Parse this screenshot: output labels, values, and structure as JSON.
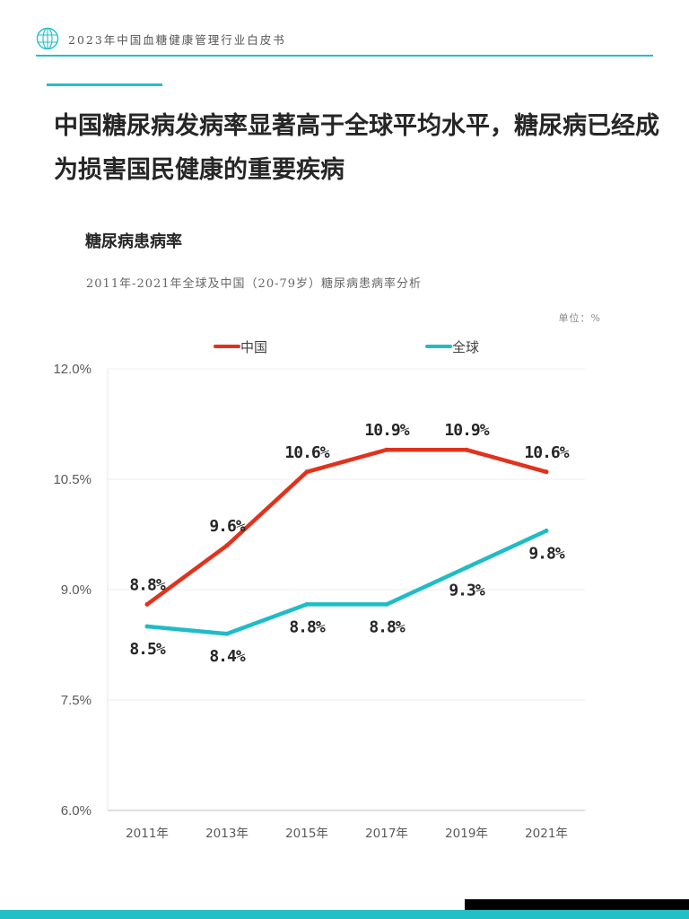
{
  "header": {
    "report_title": "2023年中国血糖健康管理行业白皮书",
    "logo_icon": "globe-logo-icon"
  },
  "headline": "中国糖尿病发病率显著高于全球平均水平，糖尿病已经成为损害国民健康的重要疾病",
  "chart_section": {
    "heading": "糖尿病患病率",
    "subtitle": "2011年-2021年全球及中国（20-79岁）糖尿病患病率分析",
    "unit": "单位：%"
  },
  "colors": {
    "accent": "#23bfc6",
    "china_series": "#e2321c",
    "global_series": "#1fbcc6"
  },
  "chart_data": {
    "type": "line",
    "categories": [
      "2011年",
      "2013年",
      "2015年",
      "2017年",
      "2019年",
      "2021年"
    ],
    "series": [
      {
        "name": "中国",
        "values": [
          8.8,
          9.6,
          10.6,
          10.9,
          10.9,
          10.6
        ],
        "labels": [
          "8.8%",
          "9.6%",
          "10.6%",
          "10.9%",
          "10.9%",
          "10.6%"
        ],
        "color": "#e2321c"
      },
      {
        "name": "全球",
        "values": [
          8.5,
          8.4,
          8.8,
          8.8,
          9.3,
          9.8
        ],
        "labels": [
          "8.5%",
          "8.4%",
          "8.8%",
          "8.8%",
          "9.3%",
          "9.8%"
        ],
        "color": "#1fbcc6"
      }
    ],
    "ylim": [
      6.0,
      12.0
    ],
    "yticks": [
      6.0,
      7.5,
      9.0,
      10.5,
      12.0
    ],
    "ytick_labels": [
      "6.0%",
      "7.5%",
      "9.0%",
      "10.5%",
      "12.0%"
    ],
    "grid": true,
    "legend_position": "top-center"
  }
}
